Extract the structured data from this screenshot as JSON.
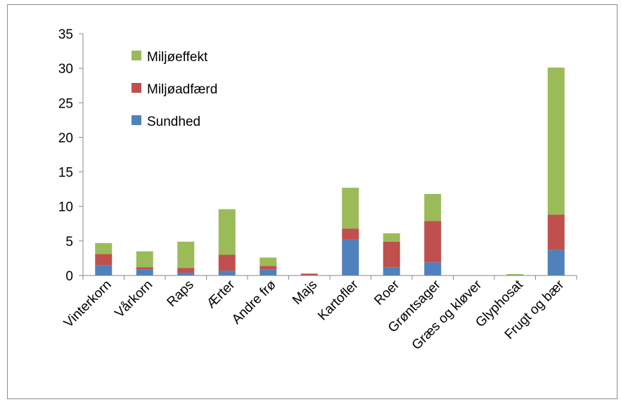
{
  "chart_data": {
    "type": "bar",
    "stacked": true,
    "categories": [
      "Vinterkorn",
      "Vårkorn",
      "Raps",
      "Ærter",
      "Andre frø",
      "Majs",
      "Kartofler",
      "Roer",
      "Grøntsager",
      "Græs og kløver",
      "Glyphosat",
      "Frugt og bær"
    ],
    "series": [
      {
        "name": "Sundhed",
        "color": "#4f81bd",
        "values": [
          1.5,
          0.9,
          0.4,
          0.7,
          0.9,
          0.05,
          5.2,
          1.2,
          1.9,
          0,
          0,
          3.7
        ]
      },
      {
        "name": "Miljøadfærd",
        "color": "#c0504d",
        "values": [
          1.6,
          0.3,
          0.7,
          2.3,
          0.5,
          0.2,
          1.6,
          3.7,
          6.0,
          0,
          0,
          5.1
        ]
      },
      {
        "name": "Miljøeffekt",
        "color": "#9bbb59",
        "values": [
          1.6,
          2.3,
          3.8,
          6.6,
          1.2,
          0.05,
          5.9,
          1.2,
          3.9,
          0,
          0.2,
          21.3
        ]
      }
    ],
    "legend_order": [
      "Miljøeffekt",
      "Miljøadfærd",
      "Sundhed"
    ],
    "ylim": [
      0,
      35
    ],
    "yticks": [
      "0",
      "5",
      "10",
      "15",
      "20",
      "25",
      "30",
      "35"
    ],
    "grid": false,
    "legend_position": "top-left"
  }
}
